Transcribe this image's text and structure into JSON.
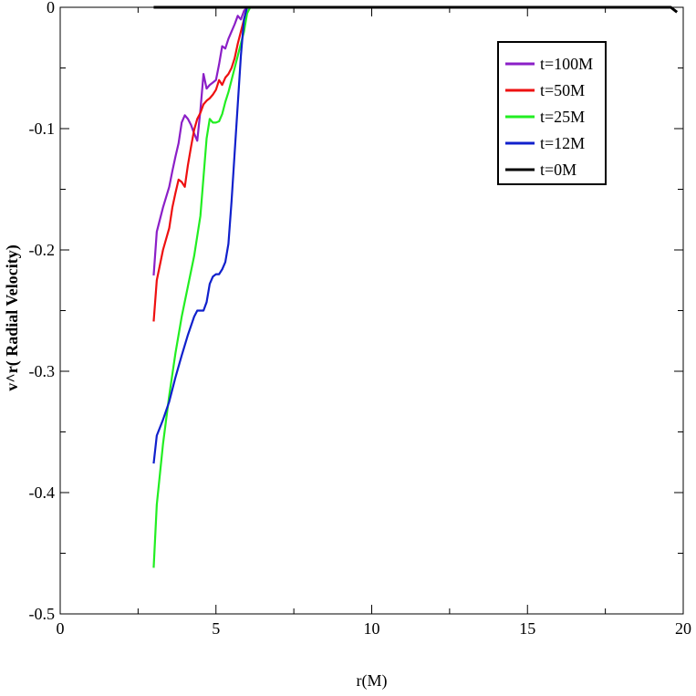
{
  "chart_data": {
    "type": "line",
    "title": "",
    "xlabel": "r(M)",
    "ylabel": "v^r( Radial Velocity)",
    "xlim": [
      0,
      20
    ],
    "ylim": [
      -0.5,
      0.0
    ],
    "xticks": [
      0,
      5,
      10,
      15,
      20
    ],
    "xtick_labels": [
      "0",
      "5",
      "10",
      "15",
      "20"
    ],
    "yticks": [
      0,
      -0.1,
      -0.2,
      -0.3,
      -0.4,
      -0.5
    ],
    "ytick_labels": [
      "0",
      "-0.1",
      "-0.2",
      "-0.3",
      "-0.4",
      "-0.5"
    ],
    "grid": false,
    "legend_position": "top-right",
    "series": [
      {
        "name": "t=100M",
        "color": "#8b1fc7",
        "x": [
          3.0,
          3.1,
          3.3,
          3.5,
          3.6,
          3.7,
          3.8,
          3.9,
          4.0,
          4.1,
          4.2,
          4.3,
          4.4,
          4.5,
          4.6,
          4.7,
          4.8,
          4.9,
          5.0,
          5.1,
          5.2,
          5.3,
          5.4,
          5.5,
          5.6,
          5.7,
          5.8,
          5.9,
          6.0,
          6.1
        ],
        "y": [
          -0.221,
          -0.185,
          -0.165,
          -0.148,
          -0.135,
          -0.123,
          -0.112,
          -0.095,
          -0.089,
          -0.092,
          -0.097,
          -0.104,
          -0.11,
          -0.085,
          -0.055,
          -0.067,
          -0.064,
          -0.062,
          -0.06,
          -0.047,
          -0.032,
          -0.034,
          -0.026,
          -0.02,
          -0.014,
          -0.007,
          -0.01,
          -0.003,
          0.0,
          0.0
        ]
      },
      {
        "name": "t=50M",
        "color": "#ee1010",
        "x": [
          3.0,
          3.1,
          3.3,
          3.5,
          3.6,
          3.7,
          3.8,
          3.9,
          4.0,
          4.1,
          4.2,
          4.3,
          4.4,
          4.5,
          4.6,
          4.7,
          4.8,
          4.9,
          5.0,
          5.1,
          5.2,
          5.3,
          5.4,
          5.5,
          5.6,
          5.7,
          5.8,
          5.9,
          6.0,
          6.1
        ],
        "y": [
          -0.259,
          -0.225,
          -0.2,
          -0.182,
          -0.165,
          -0.153,
          -0.142,
          -0.144,
          -0.148,
          -0.13,
          -0.115,
          -0.101,
          -0.092,
          -0.087,
          -0.08,
          -0.077,
          -0.075,
          -0.072,
          -0.068,
          -0.06,
          -0.064,
          -0.058,
          -0.055,
          -0.05,
          -0.042,
          -0.03,
          -0.02,
          -0.01,
          0.0,
          0.0
        ]
      },
      {
        "name": "t=25M",
        "color": "#22ee22",
        "x": [
          3.0,
          3.1,
          3.3,
          3.5,
          3.7,
          3.9,
          4.1,
          4.3,
          4.5,
          4.6,
          4.7,
          4.8,
          4.9,
          5.0,
          5.1,
          5.2,
          5.3,
          5.4,
          5.5,
          5.6,
          5.7,
          5.8,
          5.9,
          6.0,
          6.1
        ],
        "y": [
          -0.462,
          -0.41,
          -0.36,
          -0.32,
          -0.285,
          -0.255,
          -0.23,
          -0.205,
          -0.172,
          -0.14,
          -0.108,
          -0.092,
          -0.095,
          -0.095,
          -0.094,
          -0.088,
          -0.078,
          -0.07,
          -0.06,
          -0.05,
          -0.04,
          -0.03,
          -0.02,
          -0.005,
          0.0
        ]
      },
      {
        "name": "t=12M",
        "color": "#1020cc",
        "x": [
          3.0,
          3.1,
          3.3,
          3.5,
          3.7,
          3.9,
          4.1,
          4.3,
          4.4,
          4.5,
          4.6,
          4.7,
          4.8,
          4.9,
          5.0,
          5.1,
          5.2,
          5.3,
          5.4,
          5.5,
          5.6,
          5.7,
          5.8,
          5.9,
          6.0,
          6.1
        ],
        "y": [
          -0.376,
          -0.353,
          -0.34,
          -0.325,
          -0.305,
          -0.287,
          -0.27,
          -0.255,
          -0.25,
          -0.25,
          -0.25,
          -0.243,
          -0.228,
          -0.222,
          -0.22,
          -0.22,
          -0.216,
          -0.21,
          -0.195,
          -0.16,
          -0.12,
          -0.08,
          -0.04,
          -0.01,
          0.0,
          0.0
        ]
      },
      {
        "name": "t=0M",
        "color": "#000000",
        "x": [
          3.0,
          19.0,
          19.6,
          19.8
        ],
        "y": [
          0.0,
          0.0,
          0.0,
          -0.004
        ]
      }
    ]
  }
}
